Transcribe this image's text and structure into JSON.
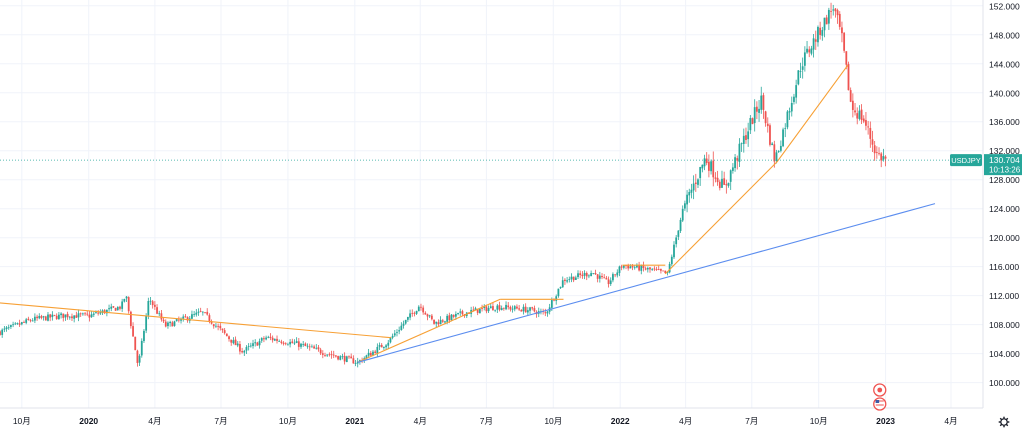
{
  "chart_data": {
    "type": "line",
    "chart_style": "candlestick",
    "symbol": "USDJPY",
    "last_price": "130.704",
    "countdown": "10:13:26",
    "price_axis": {
      "ticks": [
        "152.000",
        "148.000",
        "144.000",
        "140.000",
        "136.000",
        "132.000",
        "128.000",
        "124.000",
        "120.000",
        "116.000",
        "112.000",
        "108.000",
        "104.000",
        "100.000"
      ],
      "range": [
        96.5,
        152.8
      ]
    },
    "time_axis": {
      "labels": [
        "10月",
        "2020",
        "4月",
        "7月",
        "10月",
        "2021",
        "4月",
        "7月",
        "10月",
        "2022",
        "4月",
        "7月",
        "10月",
        "2023",
        "4月"
      ],
      "bold_labels": [
        "2020",
        "2021",
        "2022",
        "2023"
      ],
      "range": [
        "2019-09-01",
        "2023-05-15"
      ]
    },
    "grid": true,
    "colors": {
      "up": "#26a69a",
      "down": "#ef5350",
      "trendline_orange": "#f7a035",
      "trendline_blue": "#5b8def",
      "price_line": "#26a69a",
      "label_bg": "#26a69a"
    },
    "series": [
      {
        "style": "candlestick",
        "approx_close_path": [
          [
            "2019-09-01",
            107.0
          ],
          [
            "2019-10-15",
            108.7
          ],
          [
            "2019-12-01",
            109.3
          ],
          [
            "2020-01-01",
            109.2
          ],
          [
            "2020-02-15",
            110.5
          ],
          [
            "2020-02-21",
            112.2
          ],
          [
            "2020-03-09",
            102.2
          ],
          [
            "2020-03-24",
            111.7
          ],
          [
            "2020-04-15",
            107.8
          ],
          [
            "2020-06-05",
            109.7
          ],
          [
            "2020-07-31",
            104.3
          ],
          [
            "2020-09-01",
            106.2
          ],
          [
            "2020-10-15",
            105.3
          ],
          [
            "2020-11-15",
            104.3
          ],
          [
            "2021-01-05",
            102.8
          ],
          [
            "2021-02-15",
            105.6
          ],
          [
            "2021-03-31",
            110.7
          ],
          [
            "2021-04-20",
            108.2
          ],
          [
            "2021-05-31",
            109.6
          ],
          [
            "2021-07-15",
            110.5
          ],
          [
            "2021-08-31",
            110.0
          ],
          [
            "2021-09-20",
            109.5
          ],
          [
            "2021-10-15",
            114.2
          ],
          [
            "2021-11-24",
            115.2
          ],
          [
            "2021-12-15",
            113.7
          ],
          [
            "2022-01-04",
            116.2
          ],
          [
            "2022-02-15",
            115.5
          ],
          [
            "2022-03-07",
            115.0
          ],
          [
            "2022-03-28",
            123.8
          ],
          [
            "2022-04-28",
            131.0
          ],
          [
            "2022-05-24",
            126.8
          ],
          [
            "2022-06-30",
            136.0
          ],
          [
            "2022-07-14",
            139.0
          ],
          [
            "2022-08-02",
            130.6
          ],
          [
            "2022-09-07",
            144.0
          ],
          [
            "2022-10-21",
            151.9
          ],
          [
            "2022-11-01",
            148.0
          ],
          [
            "2022-11-15",
            138.0
          ],
          [
            "2022-12-01",
            136.5
          ],
          [
            "2022-12-20",
            131.5
          ],
          [
            "2023-01-03",
            130.7
          ]
        ]
      }
    ],
    "trendlines": [
      {
        "color": "orange",
        "points": [
          [
            "2019-09-01",
            111.0
          ],
          [
            "2021-02-20",
            106.2
          ]
        ]
      },
      {
        "color": "orange",
        "points": [
          [
            "2021-01-05",
            102.8
          ],
          [
            "2021-07-20",
            111.5
          ]
        ]
      },
      {
        "color": "orange",
        "points": [
          [
            "2021-07-20",
            111.5
          ],
          [
            "2021-10-15",
            111.5
          ]
        ]
      },
      {
        "color": "orange",
        "points": [
          [
            "2022-01-04",
            116.2
          ],
          [
            "2022-03-04",
            116.2
          ]
        ]
      },
      {
        "color": "orange",
        "points": [
          [
            "2022-03-04",
            115.0
          ],
          [
            "2022-08-05",
            130.5
          ],
          [
            "2022-11-10",
            143.8
          ]
        ]
      },
      {
        "color": "blue",
        "points": [
          [
            "2021-01-05",
            102.8
          ],
          [
            "2023-03-10",
            124.7
          ]
        ]
      }
    ]
  }
}
